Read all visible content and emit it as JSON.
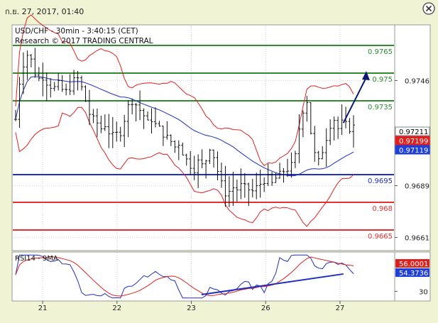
{
  "header": {
    "timestamp": "ก.ย. 27, 2017, 01:40"
  },
  "chart_data": {
    "type": "candlestick",
    "title": "USD/CHF - 30min - 3:40:15 (CET)",
    "subtitle": "Research © 2017 TRADING CENTRAL",
    "ylim": [
      0.9655,
      0.9775
    ],
    "y_ticks": [
      {
        "value": 0.9746,
        "label": "0.9746"
      },
      {
        "value": 0.9689,
        "label": "0.9689"
      },
      {
        "value": 0.9661,
        "label": "0.9661"
      }
    ],
    "x_ticks": [
      {
        "index": 8,
        "label": "21"
      },
      {
        "index": 30,
        "label": "22"
      },
      {
        "index": 52,
        "label": "23"
      },
      {
        "index": 74,
        "label": "26"
      },
      {
        "index": 96,
        "label": "27"
      }
    ],
    "levels": [
      {
        "value": 0.9765,
        "label": "0.9765",
        "color": "#2e8b2e"
      },
      {
        "value": 0.975,
        "label": "0.975",
        "color": "#2e8b2e"
      },
      {
        "value": 0.9735,
        "label": "0.9735",
        "color": "#2e8b2e"
      },
      {
        "value": 0.9695,
        "label": "0.9695",
        "color": "#1f2fbf"
      },
      {
        "value": 0.968,
        "label": "0.968",
        "color": "#e53030"
      },
      {
        "value": 0.9665,
        "label": "0.9665",
        "color": "#e53030"
      }
    ],
    "price_tags": [
      {
        "value": 0.97211,
        "label": "0.97211",
        "bg": "#ffffff",
        "fg": "#000000"
      },
      {
        "value": 0.97199,
        "label": "0.97199",
        "bg": "#e0201f",
        "fg": "#ffffff"
      },
      {
        "value": 0.97119,
        "label": "0.97119",
        "bg": "#1f3fdc",
        "fg": "#ffffff"
      }
    ],
    "forecast_arrow": {
      "from": [
        97,
        0.9723
      ],
      "to": [
        100,
        0.975
      ],
      "color": "#0d1a6e"
    },
    "price_path": [
      0.9725,
      0.9745,
      0.9755,
      0.976,
      0.9757,
      0.975,
      0.9747,
      0.9748,
      0.9745,
      0.9743,
      0.9742,
      0.9744,
      0.9741,
      0.974,
      0.9742,
      0.9746,
      0.9747,
      0.9742,
      0.9735,
      0.9728,
      0.9725,
      0.9723,
      0.972,
      0.9722,
      0.9718,
      0.9716,
      0.9717,
      0.9718,
      0.9725,
      0.9732,
      0.9735,
      0.9733,
      0.973,
      0.9727,
      0.9723,
      0.9725,
      0.9722,
      0.972,
      0.9717,
      0.9715,
      0.9713,
      0.971,
      0.9712,
      0.9707,
      0.9703,
      0.97,
      0.9698,
      0.9702,
      0.97,
      0.9703,
      0.971,
      0.9705,
      0.9697,
      0.969,
      0.9685,
      0.9686,
      0.9688,
      0.9687,
      0.9689,
      0.9688,
      0.9687,
      0.9686,
      0.9688,
      0.969,
      0.9692,
      0.9693,
      0.969,
      0.9693,
      0.9695,
      0.9697,
      0.9698,
      0.97,
      0.9705,
      0.972,
      0.973,
      0.9735,
      0.9718,
      0.9706,
      0.9702,
      0.9708,
      0.9715,
      0.9722,
      0.9725,
      0.972,
      0.9723,
      0.9722,
      0.972,
      0.9721
    ],
    "rsi": {
      "label": "RSI14 - 9MA",
      "ylim": [
        20,
        75
      ],
      "tick": {
        "value": 30,
        "label": "30"
      },
      "tags": [
        {
          "value": 56.0001,
          "label": "56.0001",
          "bg": "#e0201f",
          "fg": "#ffffff"
        },
        {
          "value": 54.3736,
          "label": "54.3736",
          "bg": "#1f3fdc",
          "fg": "#ffffff"
        }
      ],
      "trendline": {
        "from": [
          55,
          26
        ],
        "to": [
          97,
          51
        ],
        "color": "#1f2fbf"
      }
    },
    "grid": true
  }
}
